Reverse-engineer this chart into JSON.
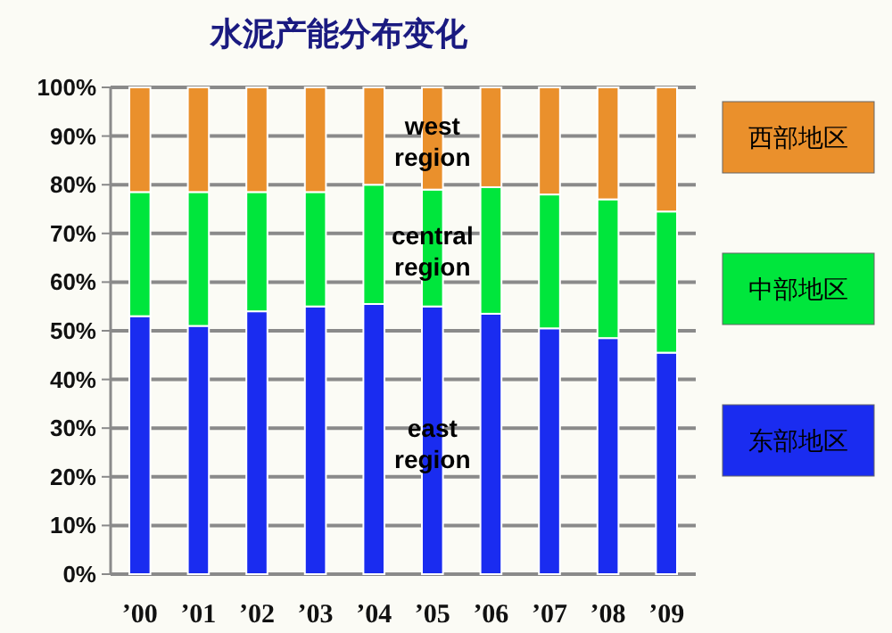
{
  "chart_data": {
    "type": "bar",
    "title": "水泥产能分布变化",
    "stacked": true,
    "categories": [
      "’00",
      "’01",
      "’02",
      "’03",
      "’04",
      "’05",
      "’06",
      "’07",
      "’08",
      "’09"
    ],
    "series": [
      {
        "name": "东部地区",
        "color": "#1a2cf0",
        "values": [
          53,
          51,
          54,
          55,
          55.5,
          55,
          53.5,
          50.5,
          48.5,
          45.5
        ]
      },
      {
        "name": "中部地区",
        "color": "#00e63c",
        "values": [
          25.5,
          27.5,
          24.5,
          23.5,
          24.5,
          24,
          26,
          27.5,
          28.5,
          29
        ]
      },
      {
        "name": "西部地区",
        "color": "#ea902c",
        "values": [
          21.5,
          21.5,
          21.5,
          21.5,
          20,
          21,
          20.5,
          22,
          23,
          25.5
        ]
      }
    ],
    "ylim": [
      0,
      100
    ],
    "yticks": [
      {
        "value": 0,
        "label": "0%"
      },
      {
        "value": 10,
        "label": "10%"
      },
      {
        "value": 20,
        "label": "20%"
      },
      {
        "value": 30,
        "label": "30%"
      },
      {
        "value": 40,
        "label": "40%"
      },
      {
        "value": 50,
        "label": "50%"
      },
      {
        "value": 60,
        "label": "60%"
      },
      {
        "value": 70,
        "label": "70%"
      },
      {
        "value": 80,
        "label": "80%"
      },
      {
        "value": 90,
        "label": "90%"
      },
      {
        "value": 100,
        "label": "100%"
      }
    ],
    "grid": "y",
    "legend": "right",
    "annotations": [
      "west region",
      "central region",
      "east region"
    ]
  }
}
